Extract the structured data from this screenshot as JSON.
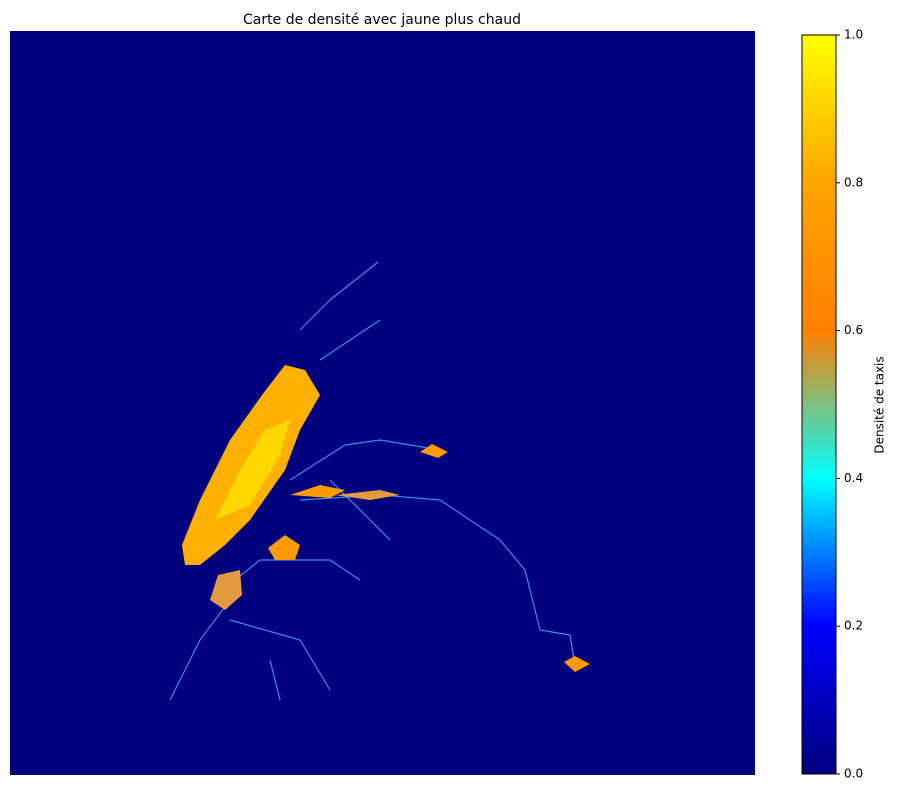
{
  "chart_data": {
    "type": "heatmap",
    "title": "Carte de densité avec jaune plus chaud",
    "colorbar_label": "Densité de taxis",
    "clim": [
      0,
      1
    ],
    "cticks": [
      {
        "value": 0,
        "label": "0.0"
      },
      0.2,
      0.4,
      0.6,
      0.8,
      {
        "value": 1,
        "label": "1.0"
      }
    ],
    "colormap": [
      "#00007f",
      "#0000ff",
      "#00ffff",
      "#ff8000",
      "#ffa500",
      "#ffff00"
    ],
    "colormap_stops": [
      0,
      0.2,
      0.4,
      0.6,
      0.8,
      1
    ]
  }
}
